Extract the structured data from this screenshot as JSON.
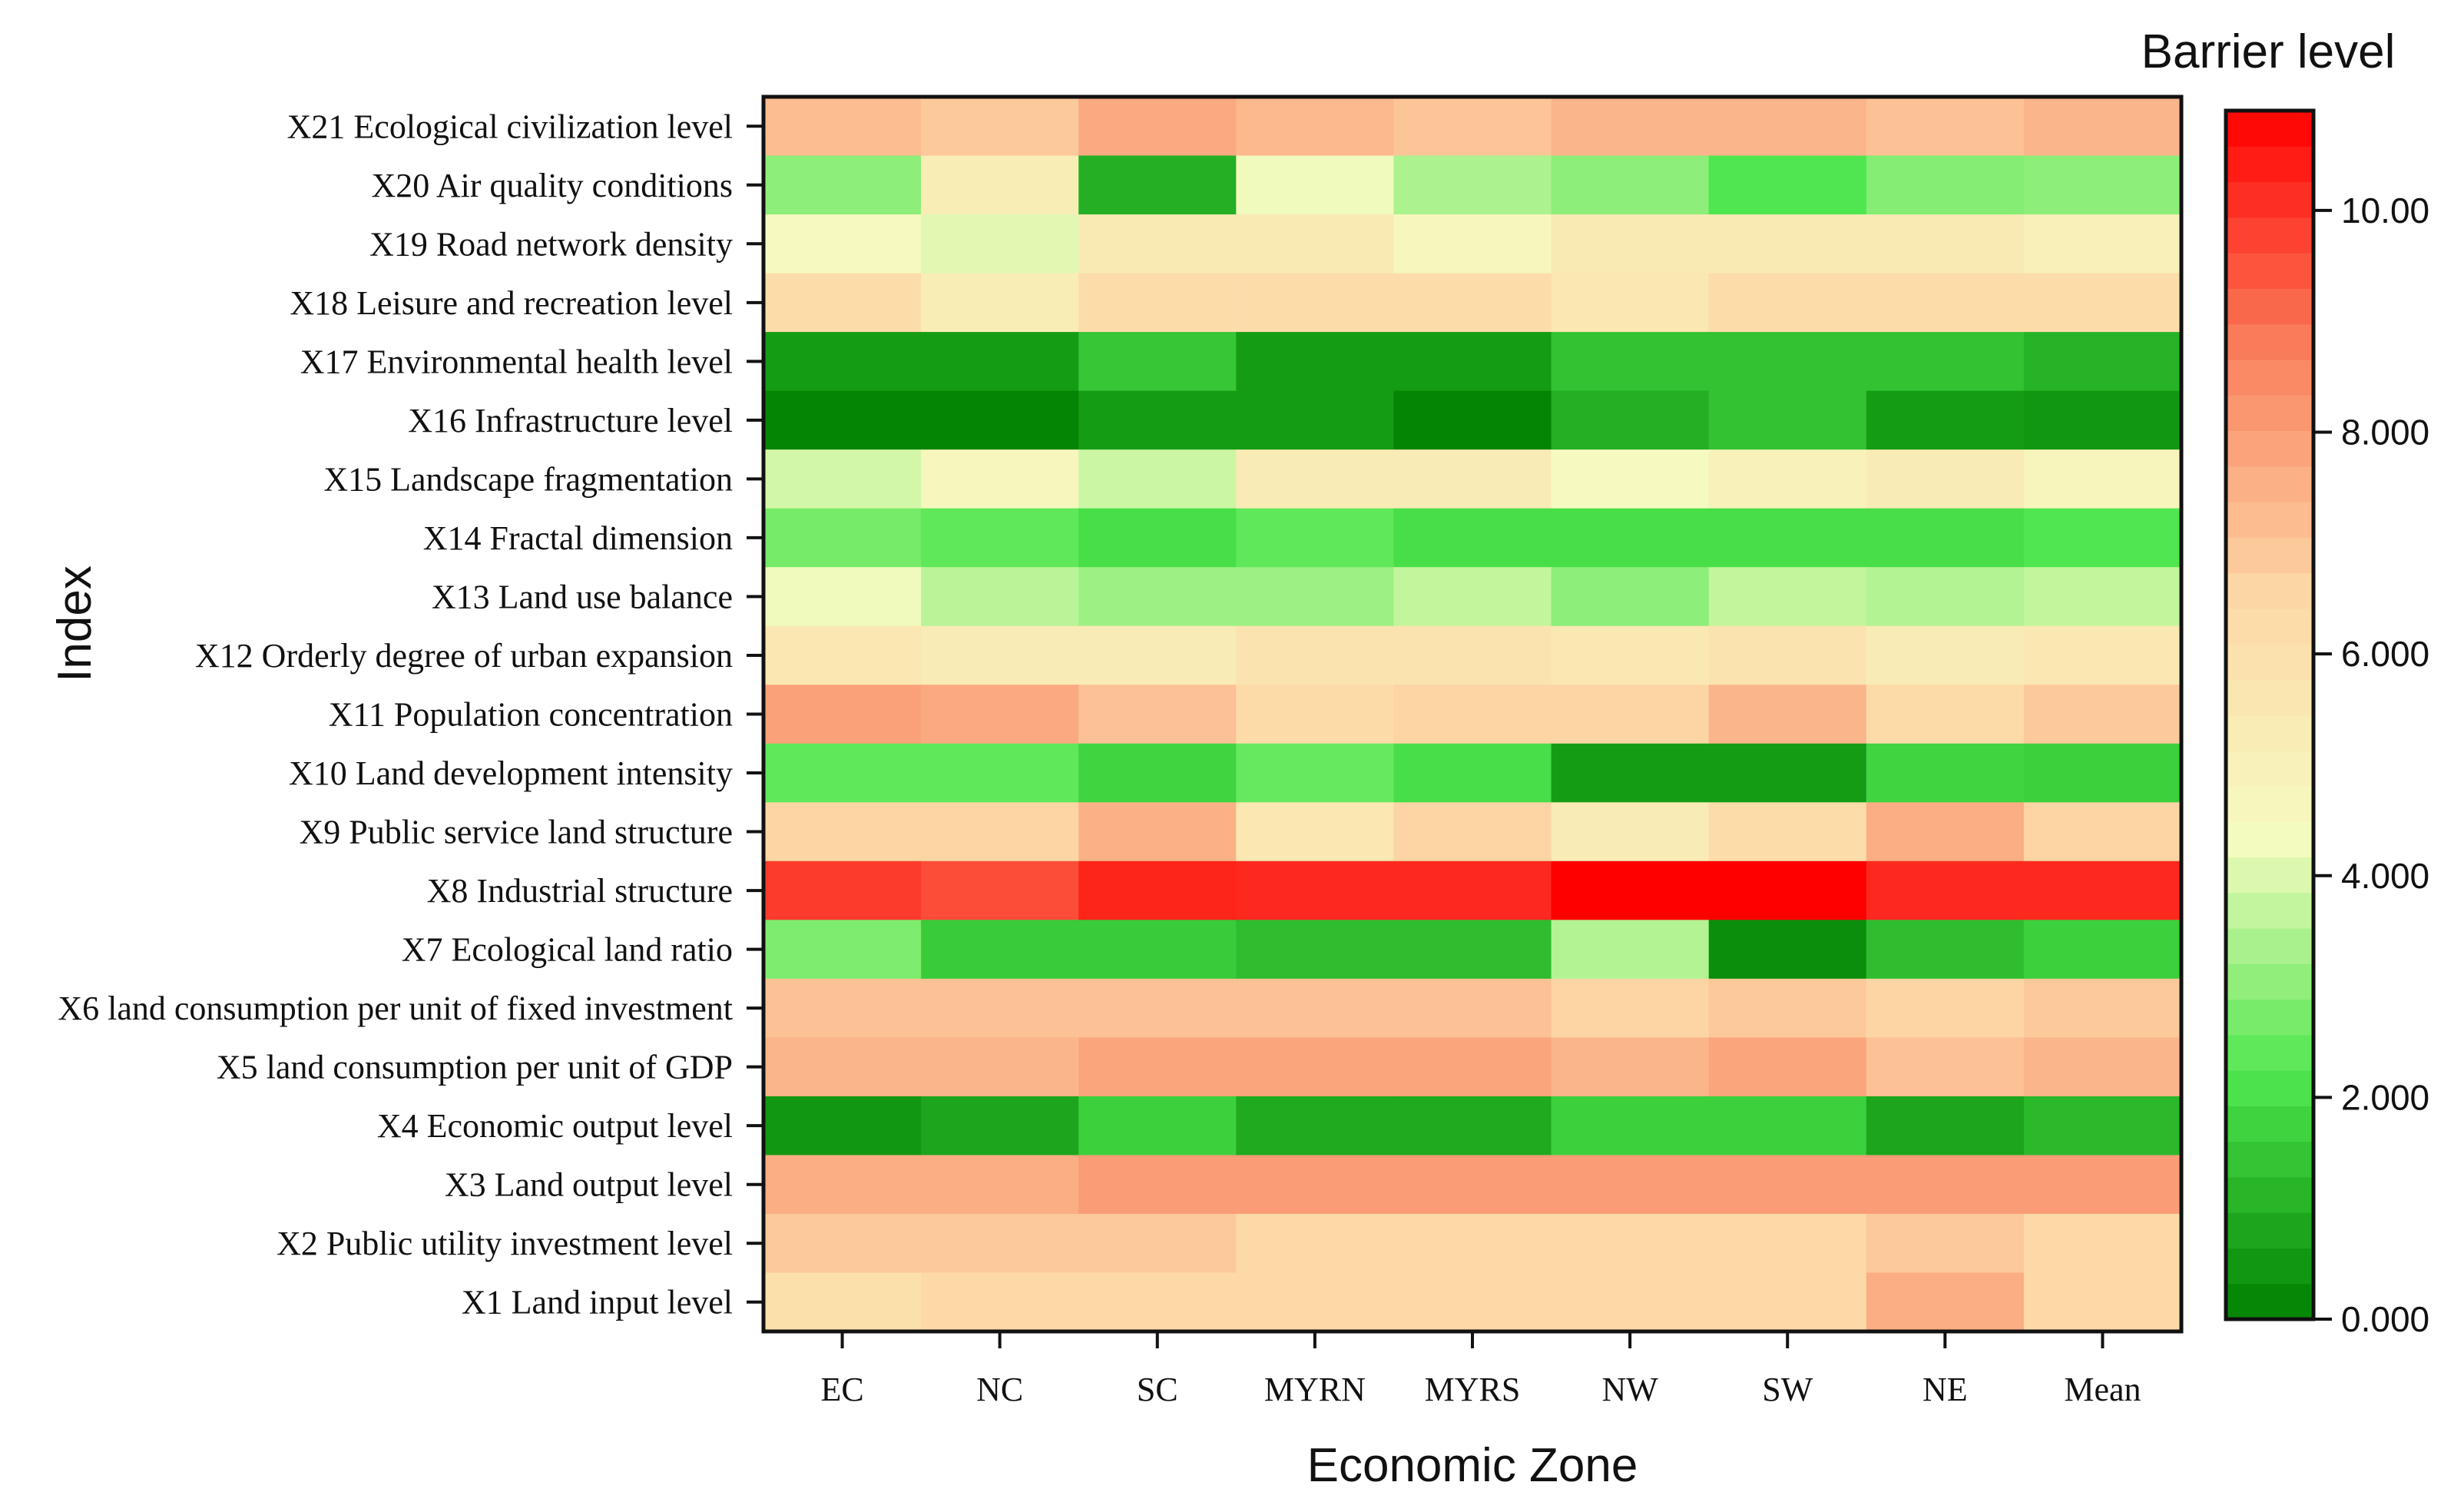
{
  "chart_data": {
    "type": "heatmap",
    "xlabel": "Economic Zone",
    "ylabel": "Index",
    "colorbar": {
      "title": "Barrier level",
      "range": [
        0,
        10.9
      ],
      "ticks": [
        0,
        2,
        4,
        6,
        8,
        10
      ],
      "tick_labels": [
        "0.000",
        "2.000",
        "4.000",
        "6.000",
        "8.000",
        "10.00"
      ],
      "palette": [
        "#008000",
        "#4ee64e",
        "#f6fbc0",
        "#fdd7a6",
        "#f9815e",
        "#ff0000"
      ]
    },
    "x_categories": [
      "EC",
      "NC",
      "SC",
      "MYRN",
      "MYRS",
      "NW",
      "SW",
      "NE",
      "Mean"
    ],
    "y_categories": [
      "X21 Ecological civilization level",
      "X20 Air quality conditions",
      "X19 Road network density",
      "X18 Leisure and recreation level",
      "X17 Environmental health level",
      "X16 Infrastructure level",
      "X15 Landscape fragmentation",
      "X14 Fractal dimension",
      "X13 Land use balance",
      "X12 Orderly degree of urban expansion",
      "X11 Population concentration",
      "X10 Land development intensity",
      "X9 Public service land structure",
      "X8 Industrial structure",
      "X7 Ecological land ratio",
      "X6 land consumption per unit of fixed investment",
      "X5 land consumption per unit of GDP",
      "X4 Economic output level",
      "X3 Land output level",
      "X2 Public utility investment level",
      "X1 Land input level"
    ],
    "values": [
      [
        7.2,
        6.9,
        7.7,
        7.3,
        7.0,
        7.4,
        7.4,
        7.1,
        7.4
      ],
      [
        3.0,
        5.2,
        1.0,
        4.3,
        3.4,
        3.0,
        2.2,
        2.9,
        3.0
      ],
      [
        4.4,
        4.1,
        5.4,
        5.4,
        4.6,
        5.4,
        5.4,
        5.4,
        5.0
      ],
      [
        6.2,
        5.2,
        6.2,
        6.2,
        6.2,
        5.6,
        6.2,
        6.2,
        6.2
      ],
      [
        0.6,
        0.6,
        1.5,
        0.6,
        0.6,
        1.4,
        1.4,
        1.4,
        1.1
      ],
      [
        0.1,
        0.1,
        0.6,
        0.6,
        0.1,
        1.0,
        1.4,
        0.6,
        0.5
      ],
      [
        3.9,
        4.6,
        3.8,
        5.3,
        5.3,
        4.4,
        4.9,
        5.3,
        4.7
      ],
      [
        2.7,
        2.4,
        2.0,
        2.4,
        2.0,
        2.0,
        2.0,
        2.0,
        2.2
      ],
      [
        4.3,
        3.6,
        3.2,
        3.2,
        3.7,
        3.0,
        3.7,
        3.5,
        3.7
      ],
      [
        5.6,
        5.3,
        5.3,
        5.8,
        5.8,
        5.5,
        5.8,
        5.3,
        5.5
      ],
      [
        7.9,
        7.7,
        7.1,
        6.3,
        6.6,
        6.6,
        7.4,
        6.3,
        6.9
      ],
      [
        2.4,
        2.4,
        1.8,
        2.5,
        2.0,
        0.6,
        0.6,
        1.8,
        1.7
      ],
      [
        6.6,
        6.6,
        7.5,
        5.6,
        6.6,
        5.3,
        6.2,
        7.6,
        6.6
      ],
      [
        9.9,
        9.6,
        10.3,
        10.2,
        10.2,
        10.9,
        10.9,
        10.2,
        10.2
      ],
      [
        2.8,
        1.6,
        1.6,
        1.3,
        1.3,
        3.5,
        0.3,
        1.3,
        1.7
      ],
      [
        7.1,
        7.1,
        7.1,
        7.1,
        7.1,
        6.6,
        6.9,
        6.6,
        6.9
      ],
      [
        7.4,
        7.4,
        7.8,
        7.8,
        7.8,
        7.4,
        7.8,
        7.1,
        7.4
      ],
      [
        0.5,
        0.8,
        1.7,
        0.9,
        0.9,
        1.7,
        1.7,
        0.8,
        1.2
      ],
      [
        7.6,
        7.6,
        8.0,
        8.0,
        8.0,
        8.0,
        8.0,
        8.0,
        8.0
      ],
      [
        6.9,
        6.9,
        6.9,
        6.4,
        6.4,
        6.4,
        6.4,
        6.9,
        6.4
      ],
      [
        6.0,
        6.4,
        6.4,
        6.4,
        6.4,
        6.4,
        6.4,
        7.6,
        6.4
      ]
    ]
  }
}
